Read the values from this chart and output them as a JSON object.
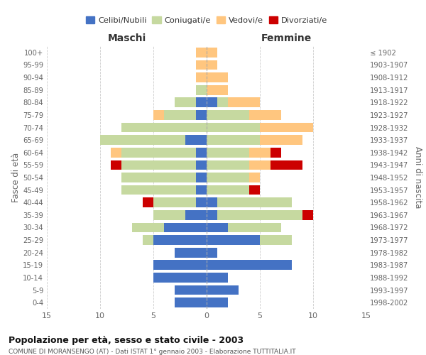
{
  "age_groups": [
    "0-4",
    "5-9",
    "10-14",
    "15-19",
    "20-24",
    "25-29",
    "30-34",
    "35-39",
    "40-44",
    "45-49",
    "50-54",
    "55-59",
    "60-64",
    "65-69",
    "70-74",
    "75-79",
    "80-84",
    "85-89",
    "90-94",
    "95-99",
    "100+"
  ],
  "birth_years": [
    "1998-2002",
    "1993-1997",
    "1988-1992",
    "1983-1987",
    "1978-1982",
    "1973-1977",
    "1968-1972",
    "1963-1967",
    "1958-1962",
    "1953-1957",
    "1948-1952",
    "1943-1947",
    "1938-1942",
    "1933-1937",
    "1928-1932",
    "1923-1927",
    "1918-1922",
    "1913-1917",
    "1908-1912",
    "1903-1907",
    "≤ 1902"
  ],
  "males": {
    "celibe": [
      3,
      3,
      5,
      5,
      3,
      5,
      4,
      2,
      1,
      1,
      1,
      1,
      1,
      2,
      0,
      1,
      1,
      0,
      0,
      0,
      0
    ],
    "coniugato": [
      0,
      0,
      0,
      0,
      0,
      1,
      3,
      3,
      4,
      7,
      7,
      7,
      7,
      8,
      8,
      3,
      2,
      1,
      0,
      0,
      0
    ],
    "vedovo": [
      0,
      0,
      0,
      0,
      0,
      0,
      0,
      0,
      0,
      0,
      0,
      0,
      1,
      0,
      0,
      1,
      0,
      0,
      1,
      1,
      1
    ],
    "divorziato": [
      0,
      0,
      0,
      0,
      0,
      0,
      0,
      0,
      1,
      0,
      0,
      1,
      0,
      0,
      0,
      0,
      0,
      0,
      0,
      0,
      0
    ]
  },
  "females": {
    "nubile": [
      2,
      3,
      2,
      8,
      1,
      5,
      2,
      1,
      1,
      0,
      0,
      0,
      0,
      0,
      0,
      0,
      1,
      0,
      0,
      0,
      0
    ],
    "coniugata": [
      0,
      0,
      0,
      0,
      0,
      3,
      5,
      8,
      7,
      4,
      4,
      4,
      4,
      5,
      5,
      4,
      1,
      0,
      0,
      0,
      0
    ],
    "vedova": [
      0,
      0,
      0,
      0,
      0,
      0,
      0,
      0,
      0,
      0,
      1,
      2,
      2,
      4,
      5,
      3,
      3,
      2,
      2,
      1,
      1
    ],
    "divorziata": [
      0,
      0,
      0,
      0,
      0,
      0,
      0,
      1,
      0,
      1,
      0,
      3,
      1,
      0,
      0,
      0,
      0,
      0,
      0,
      0,
      0
    ]
  },
  "colors": {
    "celibe": "#4472c4",
    "coniugato": "#c6d9a0",
    "vedovo": "#ffc67f",
    "divorziato": "#cc0000"
  },
  "xlim": 15,
  "title": "Popolazione per età, sesso e stato civile - 2003",
  "subtitle": "COMUNE DI MORANSENGO (AT) - Dati ISTAT 1° gennaio 2003 - Elaborazione TUTTITALIA.IT",
  "xlabel_left": "Maschi",
  "xlabel_right": "Femmine",
  "ylabel_left": "Fasce di età",
  "ylabel_right": "Anni di nascita",
  "bg_color": "#ffffff",
  "grid_color": "#cccccc"
}
